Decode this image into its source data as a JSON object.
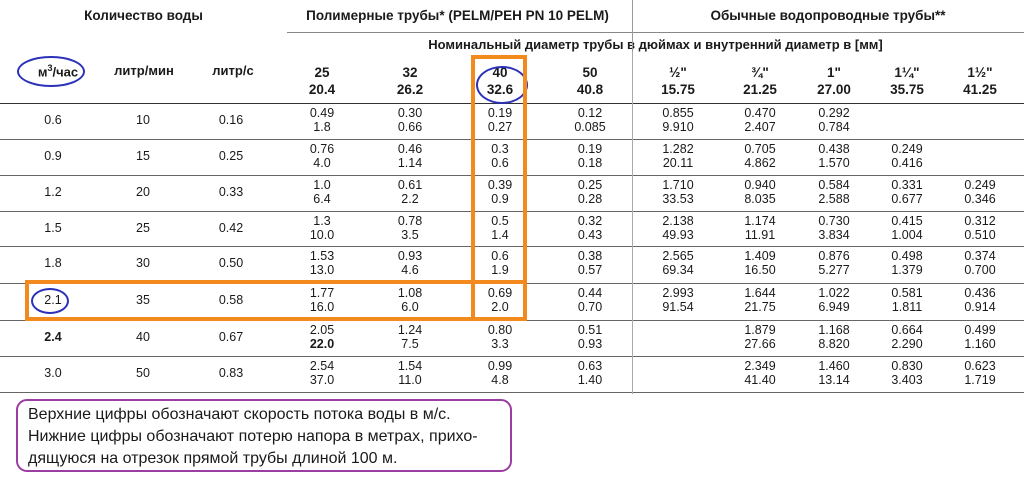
{
  "groups": {
    "water_amount": "Количество воды",
    "polymer_pipes": "Полимерные трубы* (PELM/PEH PN 10 PELM)",
    "regular_pipes": "Обычные водопроводные трубы**"
  },
  "subheader": "Номинальный диаметр трубы в дюймах и внутренний диаметр в [мм]",
  "units": {
    "m3h_base": "м",
    "m3h_sup": "3",
    "m3h_rest": "/час",
    "lmin": "литр/мин",
    "ls": "литр/с"
  },
  "diameters": [
    {
      "nominal": "25",
      "inner": "20.4"
    },
    {
      "nominal": "32",
      "inner": "26.2"
    },
    {
      "nominal": "40",
      "inner": "32.6"
    },
    {
      "nominal": "50",
      "inner": "40.8"
    },
    {
      "nominal": "½\"",
      "inner": "15.75"
    },
    {
      "nominal": "¾\"",
      "inner": "21.25"
    },
    {
      "nominal": "1\"",
      "inner": "27.00"
    },
    {
      "nominal": "1¼\"",
      "inner": "35.75"
    },
    {
      "nominal": "1½\"",
      "inner": "41.25"
    }
  ],
  "rows": [
    {
      "m3h": "0.6",
      "lmin": "10",
      "ls": "0.16",
      "v": [
        [
          "0.49",
          "1.8"
        ],
        [
          "0.30",
          "0.66"
        ],
        [
          "0.19",
          "0.27"
        ],
        [
          "0.12",
          "0.085"
        ],
        [
          "0.855",
          "9.910"
        ],
        [
          "0.470",
          "2.407"
        ],
        [
          "0.292",
          "0.784"
        ],
        [
          "",
          ""
        ],
        [
          "",
          ""
        ]
      ]
    },
    {
      "m3h": "0.9",
      "lmin": "15",
      "ls": "0.25",
      "v": [
        [
          "0.76",
          "4.0"
        ],
        [
          "0.46",
          "1.14"
        ],
        [
          "0.3",
          "0.6"
        ],
        [
          "0.19",
          "0.18"
        ],
        [
          "1.282",
          "20.11"
        ],
        [
          "0.705",
          "4.862"
        ],
        [
          "0.438",
          "1.570"
        ],
        [
          "0.249",
          "0.416"
        ],
        [
          "",
          ""
        ]
      ]
    },
    {
      "m3h": "1.2",
      "lmin": "20",
      "ls": "0.33",
      "v": [
        [
          "1.0",
          "6.4"
        ],
        [
          "0.61",
          "2.2"
        ],
        [
          "0.39",
          "0.9"
        ],
        [
          "0.25",
          "0.28"
        ],
        [
          "1.710",
          "33.53"
        ],
        [
          "0.940",
          "8.035"
        ],
        [
          "0.584",
          "2.588"
        ],
        [
          "0.331",
          "0.677"
        ],
        [
          "0.249",
          "0.346"
        ]
      ]
    },
    {
      "m3h": "1.5",
      "lmin": "25",
      "ls": "0.42",
      "v": [
        [
          "1.3",
          "10.0"
        ],
        [
          "0.78",
          "3.5"
        ],
        [
          "0.5",
          "1.4"
        ],
        [
          "0.32",
          "0.43"
        ],
        [
          "2.138",
          "49.93"
        ],
        [
          "1.174",
          "11.91"
        ],
        [
          "0.730",
          "3.834"
        ],
        [
          "0.415",
          "1.004"
        ],
        [
          "0.312",
          "0.510"
        ]
      ]
    },
    {
      "m3h": "1.8",
      "lmin": "30",
      "ls": "0.50",
      "v": [
        [
          "1.53",
          "13.0"
        ],
        [
          "0.93",
          "4.6"
        ],
        [
          "0.6",
          "1.9"
        ],
        [
          "0.38",
          "0.57"
        ],
        [
          "2.565",
          "69.34"
        ],
        [
          "1.409",
          "16.50"
        ],
        [
          "0.876",
          "5.277"
        ],
        [
          "0.498",
          "1.379"
        ],
        [
          "0.374",
          "0.700"
        ]
      ]
    },
    {
      "m3h": "2.1",
      "lmin": "35",
      "ls": "0.58",
      "v": [
        [
          "1.77",
          "16.0"
        ],
        [
          "1.08",
          "6.0"
        ],
        [
          "0.69",
          "2.0"
        ],
        [
          "0.44",
          "0.70"
        ],
        [
          "2.993",
          "91.54"
        ],
        [
          "1.644",
          "21.75"
        ],
        [
          "1.022",
          "6.949"
        ],
        [
          "0.581",
          "1.811"
        ],
        [
          "0.436",
          "0.914"
        ]
      ]
    },
    {
      "m3h": "2.4",
      "lmin": "40",
      "ls": "0.67",
      "v": [
        [
          "2.05",
          "22.0"
        ],
        [
          "1.24",
          "7.5"
        ],
        [
          "0.80",
          "3.3"
        ],
        [
          "0.51",
          "0.93"
        ],
        [
          "",
          ""
        ],
        [
          "1.879",
          "27.66"
        ],
        [
          "1.168",
          "8.820"
        ],
        [
          "0.664",
          "2.290"
        ],
        [
          "0.499",
          "1.160"
        ]
      ]
    },
    {
      "m3h": "3.0",
      "lmin": "50",
      "ls": "0.83",
      "v": [
        [
          "2.54",
          "37.0"
        ],
        [
          "1.54",
          "11.0"
        ],
        [
          "0.99",
          "4.8"
        ],
        [
          "0.63",
          "1.40"
        ],
        [
          "",
          ""
        ],
        [
          "2.349",
          "41.40"
        ],
        [
          "1.460",
          "13.14"
        ],
        [
          "0.830",
          "3.403"
        ],
        [
          "0.623",
          "1.719"
        ]
      ]
    }
  ],
  "note": [
    "Верхние цифры обозначают скорость потока воды в м/с.",
    "Нижние цифры обозначают потерю напора в метрах, прихо-",
    "дящуюся на отрезок прямой трубы длиной 100 м."
  ],
  "colors": {
    "highlight_ring": "#2b31b8",
    "highlight_box": "#f28a1d",
    "note_border": "#9b3ea1"
  }
}
